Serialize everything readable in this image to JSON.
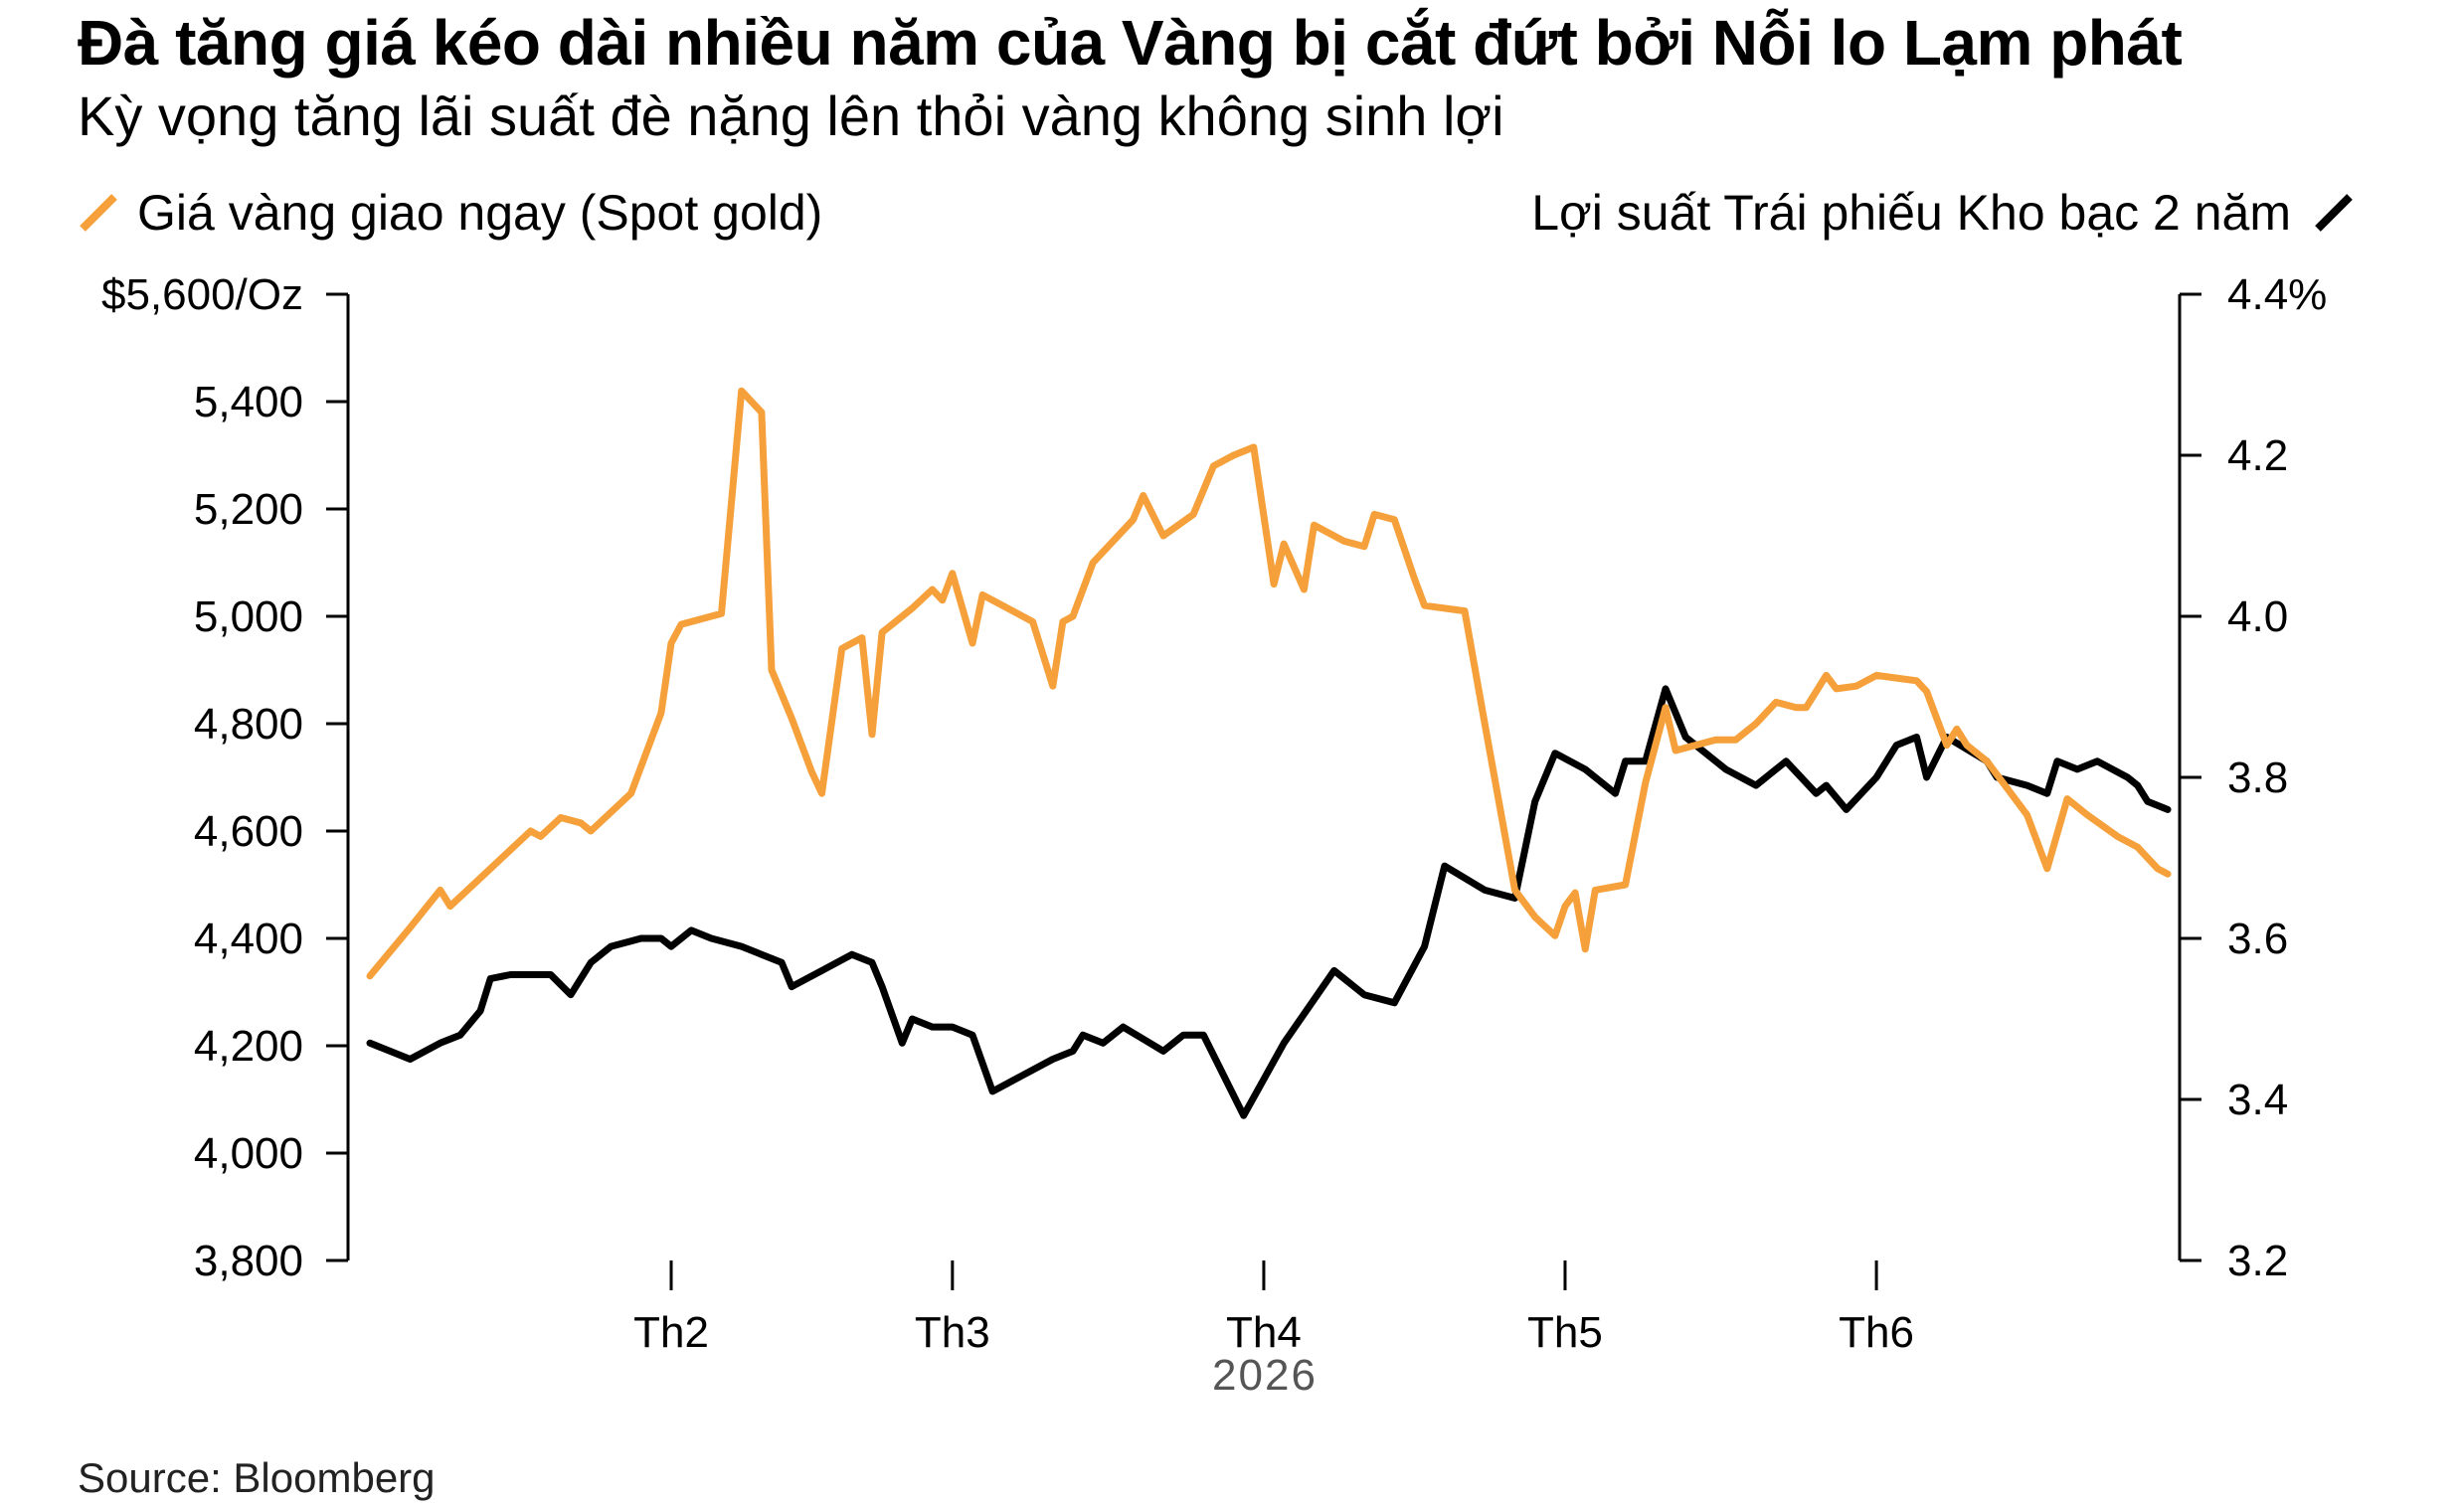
{
  "title": "Đà tăng giá kéo dài nhiều năm của Vàng bị cắt đứt bởi Nỗi lo Lạm phát",
  "subtitle": "Kỳ vọng tăng lãi suất đè nặng lên thỏi vàng không sinh lợi",
  "source": "Source: Bloomberg",
  "legend": {
    "left_label": "Giá vàng giao ngay (Spot gold)",
    "right_label": "Lợi suất Trái phiếu Kho bạc 2 năm",
    "left_icon": "orange-slash-icon",
    "right_icon": "black-slash-icon"
  },
  "colors": {
    "gold": "#f5a03a",
    "yield": "#000000",
    "axis": "#000000",
    "year": "#555555"
  },
  "chart_data": {
    "type": "line",
    "x_axis": {
      "tick_labels": [
        "Th2",
        "Th3",
        "Th4",
        "Th5",
        "Th6"
      ],
      "tick_dates": [
        "2026-02-01",
        "2026-03-01",
        "2026-04-01",
        "2026-05-01",
        "2026-06-01"
      ],
      "year_label": "2026",
      "range": [
        "2026-01-02",
        "2026-06-30"
      ]
    },
    "left_axis": {
      "ticks": [
        3800,
        4000,
        4200,
        4400,
        4600,
        4800,
        5000,
        5200,
        5400,
        5600
      ],
      "tick_labels": [
        "3,800",
        "4,000",
        "4,200",
        "4,400",
        "4,600",
        "4,800",
        "5,000",
        "5,200",
        "5,400",
        "$5,600/Oz"
      ],
      "ylim": [
        3800,
        5600
      ]
    },
    "right_axis": {
      "ticks": [
        3.2,
        3.4,
        3.6,
        3.8,
        4.0,
        4.2,
        4.4
      ],
      "tick_labels": [
        "3.2",
        "3.4",
        "3.6",
        "3.8",
        "4.0",
        "4.2",
        "4.4%"
      ],
      "ylim": [
        3.2,
        4.4
      ]
    },
    "series": [
      {
        "name": "Giá vàng giao ngay (Spot gold)",
        "axis": "left",
        "color": "#f5a03a",
        "points": [
          [
            "2026-01-02",
            4330
          ],
          [
            "2026-01-06",
            4420
          ],
          [
            "2026-01-09",
            4490
          ],
          [
            "2026-01-10",
            4460
          ],
          [
            "2026-01-14",
            4530
          ],
          [
            "2026-01-18",
            4600
          ],
          [
            "2026-01-19",
            4590
          ],
          [
            "2026-01-21",
            4625
          ],
          [
            "2026-01-23",
            4615
          ],
          [
            "2026-01-24",
            4600
          ],
          [
            "2026-01-28",
            4670
          ],
          [
            "2026-01-31",
            4820
          ],
          [
            "2026-02-01",
            4950
          ],
          [
            "2026-02-02",
            4985
          ],
          [
            "2026-02-06",
            5005
          ],
          [
            "2026-02-08",
            5420
          ],
          [
            "2026-02-09",
            5400
          ],
          [
            "2026-02-10",
            5380
          ],
          [
            "2026-02-11",
            4900
          ],
          [
            "2026-02-13",
            4810
          ],
          [
            "2026-02-15",
            4710
          ],
          [
            "2026-02-16",
            4670
          ],
          [
            "2026-02-18",
            4940
          ],
          [
            "2026-02-20",
            4960
          ],
          [
            "2026-02-21",
            4780
          ],
          [
            "2026-02-22",
            4970
          ],
          [
            "2026-02-25",
            5015
          ],
          [
            "2026-02-27",
            5050
          ],
          [
            "2026-02-28",
            5030
          ],
          [
            "2026-03-01",
            5080
          ],
          [
            "2026-03-03",
            4950
          ],
          [
            "2026-03-04",
            5040
          ],
          [
            "2026-03-07",
            5010
          ],
          [
            "2026-03-09",
            4990
          ],
          [
            "2026-03-11",
            4870
          ],
          [
            "2026-03-12",
            4990
          ],
          [
            "2026-03-13",
            5000
          ],
          [
            "2026-03-15",
            5100
          ],
          [
            "2026-03-19",
            5180
          ],
          [
            "2026-03-20",
            5225
          ],
          [
            "2026-03-22",
            5150
          ],
          [
            "2026-03-25",
            5190
          ],
          [
            "2026-03-27",
            5280
          ],
          [
            "2026-03-29",
            5300
          ],
          [
            "2026-03-31",
            5315
          ],
          [
            "2026-04-02",
            5060
          ],
          [
            "2026-04-03",
            5135
          ],
          [
            "2026-04-05",
            5050
          ],
          [
            "2026-04-06",
            5170
          ],
          [
            "2026-04-09",
            5140
          ],
          [
            "2026-04-11",
            5130
          ],
          [
            "2026-04-12",
            5190
          ],
          [
            "2026-04-14",
            5180
          ],
          [
            "2026-04-16",
            5070
          ],
          [
            "2026-04-17",
            5020
          ],
          [
            "2026-04-21",
            5010
          ],
          [
            "2026-04-23",
            4800
          ],
          [
            "2026-04-26",
            4490
          ],
          [
            "2026-04-28",
            4440
          ],
          [
            "2026-04-30",
            4405
          ],
          [
            "2026-05-01",
            4460
          ],
          [
            "2026-05-02",
            4485
          ],
          [
            "2026-05-03",
            4380
          ],
          [
            "2026-05-04",
            4490
          ],
          [
            "2026-05-07",
            4500
          ],
          [
            "2026-05-09",
            4690
          ],
          [
            "2026-05-11",
            4830
          ],
          [
            "2026-05-12",
            4750
          ],
          [
            "2026-05-16",
            4770
          ],
          [
            "2026-05-18",
            4770
          ],
          [
            "2026-05-20",
            4800
          ],
          [
            "2026-05-22",
            4840
          ],
          [
            "2026-05-24",
            4830
          ],
          [
            "2026-05-25",
            4830
          ],
          [
            "2026-05-27",
            4890
          ],
          [
            "2026-05-28",
            4865
          ],
          [
            "2026-05-30",
            4870
          ],
          [
            "2026-06-01",
            4890
          ],
          [
            "2026-06-05",
            4880
          ],
          [
            "2026-06-06",
            4860
          ],
          [
            "2026-06-08",
            4760
          ],
          [
            "2026-06-09",
            4790
          ],
          [
            "2026-06-10",
            4760
          ],
          [
            "2026-06-12",
            4730
          ],
          [
            "2026-06-14",
            4680
          ],
          [
            "2026-06-16",
            4630
          ],
          [
            "2026-06-18",
            4530
          ],
          [
            "2026-06-20",
            4660
          ],
          [
            "2026-06-22",
            4630
          ],
          [
            "2026-06-25",
            4590
          ],
          [
            "2026-06-27",
            4570
          ],
          [
            "2026-06-29",
            4530
          ],
          [
            "2026-06-30",
            4520
          ]
        ]
      },
      {
        "name": "Lợi suất Trái phiếu Kho bạc 2 năm",
        "axis": "right",
        "color": "#000000",
        "points": [
          [
            "2026-01-02",
            3.47
          ],
          [
            "2026-01-06",
            3.45
          ],
          [
            "2026-01-09",
            3.47
          ],
          [
            "2026-01-11",
            3.48
          ],
          [
            "2026-01-13",
            3.51
          ],
          [
            "2026-01-14",
            3.55
          ],
          [
            "2026-01-16",
            3.555
          ],
          [
            "2026-01-18",
            3.555
          ],
          [
            "2026-01-20",
            3.555
          ],
          [
            "2026-01-22",
            3.53
          ],
          [
            "2026-01-24",
            3.57
          ],
          [
            "2026-01-26",
            3.59
          ],
          [
            "2026-01-29",
            3.6
          ],
          [
            "2026-01-31",
            3.6
          ],
          [
            "2026-02-01",
            3.59
          ],
          [
            "2026-02-03",
            3.61
          ],
          [
            "2026-02-05",
            3.6
          ],
          [
            "2026-02-08",
            3.59
          ],
          [
            "2026-02-10",
            3.58
          ],
          [
            "2026-02-12",
            3.57
          ],
          [
            "2026-02-13",
            3.54
          ],
          [
            "2026-02-16",
            3.56
          ],
          [
            "2026-02-19",
            3.58
          ],
          [
            "2026-02-21",
            3.57
          ],
          [
            "2026-02-22",
            3.54
          ],
          [
            "2026-02-24",
            3.47
          ],
          [
            "2026-02-25",
            3.5
          ],
          [
            "2026-02-27",
            3.49
          ],
          [
            "2026-03-01",
            3.49
          ],
          [
            "2026-03-03",
            3.48
          ],
          [
            "2026-03-05",
            3.41
          ],
          [
            "2026-03-08",
            3.43
          ],
          [
            "2026-03-11",
            3.45
          ],
          [
            "2026-03-13",
            3.46
          ],
          [
            "2026-03-14",
            3.48
          ],
          [
            "2026-03-16",
            3.47
          ],
          [
            "2026-03-18",
            3.49
          ],
          [
            "2026-03-22",
            3.46
          ],
          [
            "2026-03-24",
            3.48
          ],
          [
            "2026-03-26",
            3.48
          ],
          [
            "2026-03-30",
            3.38
          ],
          [
            "2026-04-03",
            3.47
          ],
          [
            "2026-04-08",
            3.56
          ],
          [
            "2026-04-11",
            3.53
          ],
          [
            "2026-04-14",
            3.52
          ],
          [
            "2026-04-17",
            3.59
          ],
          [
            "2026-04-19",
            3.69
          ],
          [
            "2026-04-23",
            3.66
          ],
          [
            "2026-04-26",
            3.65
          ],
          [
            "2026-04-28",
            3.77
          ],
          [
            "2026-04-30",
            3.83
          ],
          [
            "2026-05-03",
            3.81
          ],
          [
            "2026-05-06",
            3.78
          ],
          [
            "2026-05-07",
            3.82
          ],
          [
            "2026-05-09",
            3.82
          ],
          [
            "2026-05-11",
            3.91
          ],
          [
            "2026-05-13",
            3.85
          ],
          [
            "2026-05-17",
            3.81
          ],
          [
            "2026-05-20",
            3.79
          ],
          [
            "2026-05-23",
            3.82
          ],
          [
            "2026-05-26",
            3.78
          ],
          [
            "2026-05-27",
            3.79
          ],
          [
            "2026-05-29",
            3.76
          ],
          [
            "2026-06-01",
            3.8
          ],
          [
            "2026-06-03",
            3.84
          ],
          [
            "2026-06-05",
            3.85
          ],
          [
            "2026-06-06",
            3.8
          ],
          [
            "2026-06-08",
            3.85
          ],
          [
            "2026-06-12",
            3.82
          ],
          [
            "2026-06-13",
            3.8
          ],
          [
            "2026-06-16",
            3.79
          ],
          [
            "2026-06-18",
            3.78
          ],
          [
            "2026-06-19",
            3.82
          ],
          [
            "2026-06-21",
            3.81
          ],
          [
            "2026-06-23",
            3.82
          ],
          [
            "2026-06-26",
            3.8
          ],
          [
            "2026-06-27",
            3.79
          ],
          [
            "2026-06-28",
            3.77
          ],
          [
            "2026-06-30",
            3.76
          ]
        ]
      }
    ],
    "grid": false,
    "legend_position": "top"
  }
}
